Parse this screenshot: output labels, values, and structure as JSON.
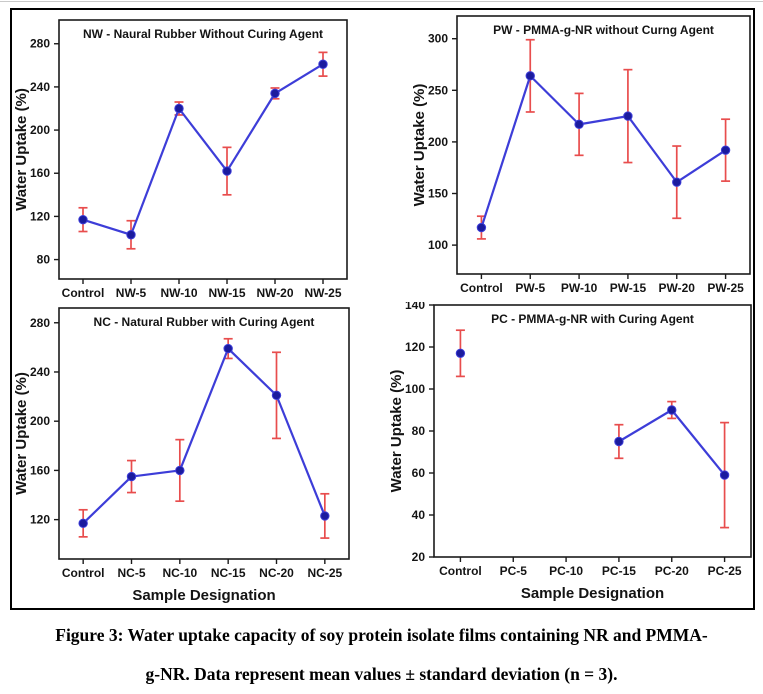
{
  "figure": {
    "caption_line1": "Figure 3: Water uptake capacity of soy protein isolate films containing NR and PMMA-",
    "caption_line2": "g-NR. Data represent mean values ± standard deviation (n = 3)."
  },
  "colors": {
    "line": "#3d3dd8",
    "marker": "#1b1b9e",
    "error": "#e84d4d",
    "frame": "#1a1a1a",
    "text": "#141414"
  },
  "chart_data": [
    {
      "id": "NW",
      "type": "line",
      "title": "NW - Naural Rubber Without Curing Agent",
      "xlabel": "",
      "ylabel": "Water Uptake (%)",
      "categories": [
        "Control",
        "NW-5",
        "NW-10",
        "NW-15",
        "NW-20",
        "NW-25"
      ],
      "series": [
        {
          "name": "Water Uptake (%)",
          "values": [
            117,
            103,
            220,
            162,
            234,
            261
          ],
          "errors": [
            11,
            13,
            6,
            22,
            5,
            11
          ]
        }
      ],
      "yticks": [
        80,
        120,
        160,
        200,
        240,
        280
      ],
      "ylim": [
        62,
        302
      ],
      "grid": false,
      "legend": "none"
    },
    {
      "id": "PW",
      "type": "line",
      "title": "PW - PMMA-g-NR without Curng Agent",
      "xlabel": "",
      "ylabel": "Water Uptake (%)",
      "categories": [
        "Control",
        "PW-5",
        "PW-10",
        "PW-15",
        "PW-20",
        "PW-25"
      ],
      "series": [
        {
          "name": "Water Uptake (%)",
          "values": [
            117,
            264,
            217,
            225,
            161,
            192
          ],
          "errors": [
            11,
            35,
            30,
            45,
            35,
            30
          ]
        }
      ],
      "yticks": [
        100,
        150,
        200,
        250,
        300
      ],
      "ylim": [
        72,
        322
      ],
      "grid": false,
      "legend": "none"
    },
    {
      "id": "NC",
      "type": "line",
      "title": "NC - Natural Rubber with Curing Agent",
      "xlabel": "Sample Designation",
      "ylabel": "Water Uptake (%)",
      "categories": [
        "Control",
        "NC-5",
        "NC-10",
        "NC-15",
        "NC-20",
        "NC-25"
      ],
      "series": [
        {
          "name": "Water Uptake (%)",
          "values": [
            117,
            155,
            160,
            259,
            221,
            123
          ],
          "errors": [
            11,
            13,
            25,
            8,
            35,
            18
          ]
        }
      ],
      "yticks": [
        120,
        160,
        200,
        240,
        280
      ],
      "ylim": [
        88,
        292
      ],
      "grid": false,
      "legend": "none"
    },
    {
      "id": "PC",
      "type": "line",
      "title": "PC - PMMA-g-NR with Curing Agent",
      "xlabel": "Sample Designation",
      "ylabel": "Water Uptake (%)",
      "categories": [
        "Control",
        "PC-5",
        "PC-10",
        "PC-15",
        "PC-20",
        "PC-25"
      ],
      "series": [
        {
          "name": "Water Uptake (%)",
          "values": [
            117,
            null,
            null,
            75,
            90,
            59
          ],
          "errors": [
            11,
            null,
            null,
            8,
            4,
            25
          ]
        }
      ],
      "yticks": [
        20,
        40,
        60,
        80,
        100,
        120,
        140
      ],
      "ylim": [
        20,
        140
      ],
      "grid": false,
      "legend": "none"
    }
  ]
}
